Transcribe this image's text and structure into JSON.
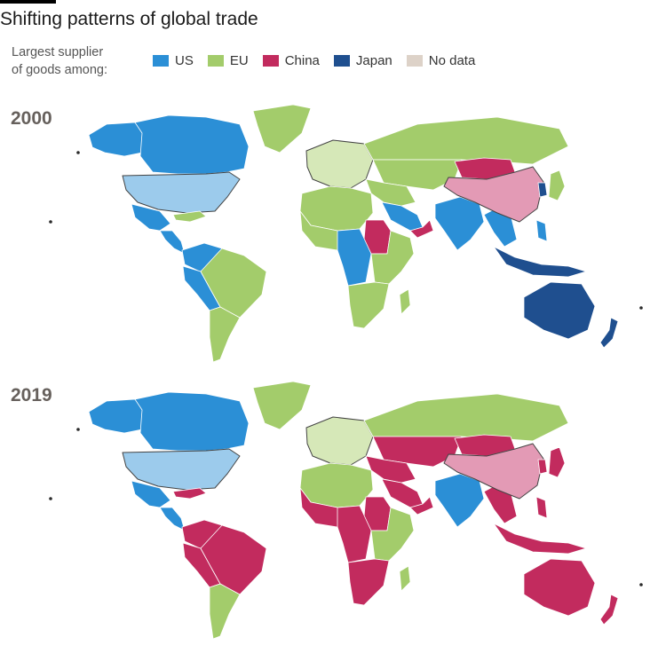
{
  "title": "Shifting patterns of global trade",
  "legend": {
    "caption_line1": "Largest supplier",
    "caption_line2": "of goods among:",
    "items": [
      {
        "label": "US",
        "color": "#2b8fd6"
      },
      {
        "label": "EU",
        "color": "#a3cc6b"
      },
      {
        "label": "China",
        "color": "#c22b5e"
      },
      {
        "label": "Japan",
        "color": "#1f4f8f"
      },
      {
        "label": "No data",
        "color": "#ddd2c8"
      }
    ]
  },
  "eu_highlight_color": "#d6e8b8",
  "us_highlight_color": "#9ccbec",
  "china_highlight_color": "#e39ab5",
  "maps": [
    {
      "year": "2000",
      "regions": {
        "alaska": "US",
        "canada": "US",
        "usa": "US-self",
        "greenland": "EU",
        "mexico": "US",
        "central_america": "US",
        "caribbean": "EU",
        "colombia_venezuela": "US",
        "ecuador_peru": "US",
        "brazil": "EU",
        "southern_cone": "EU",
        "europe": "EU-self",
        "russia": "EU",
        "central_asia": "EU",
        "middle_east": "EU",
        "arabia": "US",
        "yemen_oman": "China",
        "north_africa": "EU",
        "sudan": "China",
        "west_africa": "EU",
        "central_africa": "US",
        "east_africa": "EU",
        "southern_africa": "EU",
        "madagascar": "EU",
        "india": "US",
        "southeast_asia": "US",
        "mongolia": "China",
        "china": "China-self",
        "korea": "Japan",
        "japan": "EU",
        "indonesia": "Japan",
        "philippines": "US",
        "australia": "Japan",
        "new_zealand": "Japan"
      }
    },
    {
      "year": "2019",
      "regions": {
        "alaska": "US",
        "canada": "US",
        "usa": "US-self",
        "greenland": "EU",
        "mexico": "US",
        "central_america": "US",
        "caribbean": "China",
        "colombia_venezuela": "China",
        "ecuador_peru": "China",
        "brazil": "China",
        "southern_cone": "EU",
        "europe": "EU-self",
        "russia": "EU",
        "central_asia": "China",
        "middle_east": "China",
        "arabia": "China",
        "yemen_oman": "China",
        "north_africa": "EU",
        "sudan": "China",
        "west_africa": "China",
        "central_africa": "China",
        "east_africa": "EU",
        "southern_africa": "China",
        "madagascar": "EU",
        "india": "US",
        "southeast_asia": "China",
        "mongolia": "China",
        "china": "China-self",
        "korea": "China",
        "japan": "China",
        "indonesia": "China",
        "philippines": "China",
        "australia": "China",
        "new_zealand": "China"
      }
    }
  ]
}
